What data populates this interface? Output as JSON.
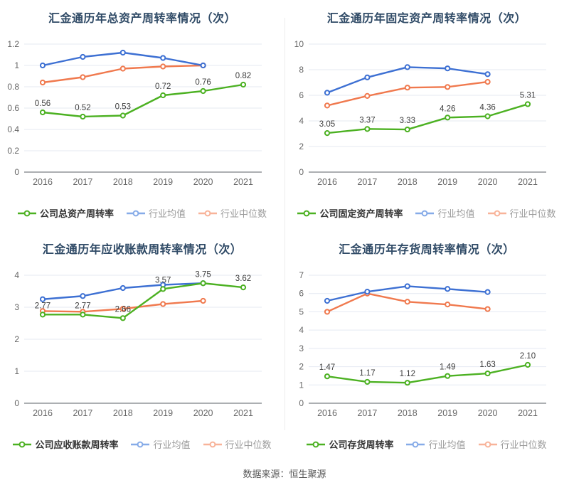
{
  "footer": {
    "text": "数据来源：恒生聚源"
  },
  "colors": {
    "company": "#4cb122",
    "mean": "#3d70d3",
    "median": "#f0794e",
    "mean_legend": "#86abe8",
    "median_legend": "#f8b399",
    "title": "#2f4a66",
    "tick": "#666666",
    "point_label": "#3d3d3d",
    "grid": "#e4e9f2",
    "axis": "#5a5f66"
  },
  "chart_data": [
    {
      "type": "line",
      "title": "汇金通历年总资产周转率情况（次）",
      "x_categories": [
        "2016",
        "2017",
        "2018",
        "2019",
        "2020",
        "2021"
      ],
      "ylim": [
        0,
        1.2
      ],
      "yticks": [
        0,
        0.2,
        0.4,
        0.6,
        0.8,
        1,
        1.2
      ],
      "legend_position": "bottom",
      "grid": true,
      "series": [
        {
          "name": "公司总资产周转率",
          "role": "company",
          "values": [
            0.56,
            0.52,
            0.53,
            0.72,
            0.76,
            0.82
          ],
          "point_labels": [
            "0.56",
            "0.52",
            "0.53",
            "0.72",
            "0.76",
            "0.82"
          ]
        },
        {
          "name": "行业均值",
          "role": "mean",
          "values": [
            1.0,
            1.08,
            1.12,
            1.07,
            1.0
          ]
        },
        {
          "name": "行业中位数",
          "role": "median",
          "values": [
            0.84,
            0.89,
            0.97,
            0.99,
            1.0
          ]
        }
      ]
    },
    {
      "type": "line",
      "title": "汇金通历年固定资产周转率情况（次）",
      "x_categories": [
        "2016",
        "2017",
        "2018",
        "2019",
        "2020",
        "2021"
      ],
      "ylim": [
        0,
        10
      ],
      "yticks": [
        0,
        2,
        4,
        6,
        8,
        10
      ],
      "legend_position": "bottom",
      "grid": true,
      "series": [
        {
          "name": "公司固定资产周转率",
          "role": "company",
          "values": [
            3.05,
            3.37,
            3.33,
            4.26,
            4.36,
            5.31
          ],
          "point_labels": [
            "3.05",
            "3.37",
            "3.33",
            "4.26",
            "4.36",
            "5.31"
          ]
        },
        {
          "name": "行业均值",
          "role": "mean",
          "values": [
            6.2,
            7.4,
            8.2,
            8.1,
            7.65
          ]
        },
        {
          "name": "行业中位数",
          "role": "median",
          "values": [
            5.2,
            5.95,
            6.6,
            6.65,
            7.05
          ]
        }
      ]
    },
    {
      "type": "line",
      "title": "汇金通历年应收账款周转率情况（次）",
      "x_categories": [
        "2016",
        "2017",
        "2018",
        "2019",
        "2020",
        "2021"
      ],
      "ylim": [
        0,
        4
      ],
      "yticks": [
        0,
        1,
        2,
        3,
        4
      ],
      "legend_position": "bottom",
      "grid": true,
      "series": [
        {
          "name": "公司应收账款周转率",
          "role": "company",
          "values": [
            2.77,
            2.77,
            2.66,
            3.57,
            3.75,
            3.62
          ],
          "point_labels": [
            "2.77",
            "2.77",
            "2.66",
            "3.57",
            "3.75",
            "3.62"
          ]
        },
        {
          "name": "行业均值",
          "role": "mean",
          "values": [
            3.25,
            3.35,
            3.6,
            3.7,
            3.75
          ]
        },
        {
          "name": "行业中位数",
          "role": "median",
          "values": [
            2.88,
            2.86,
            2.95,
            3.1,
            3.2
          ]
        }
      ]
    },
    {
      "type": "line",
      "title": "汇金通历年存货周转率情况（次）",
      "x_categories": [
        "2016",
        "2017",
        "2018",
        "2019",
        "2020",
        "2021"
      ],
      "ylim": [
        0,
        7
      ],
      "yticks": [
        0,
        1,
        2,
        3,
        4,
        5,
        6,
        7
      ],
      "legend_position": "bottom",
      "grid": true,
      "series": [
        {
          "name": "公司存货周转率",
          "role": "company",
          "values": [
            1.47,
            1.17,
            1.12,
            1.49,
            1.63,
            2.1
          ],
          "point_labels": [
            "1.47",
            "1.17",
            "1.12",
            "1.49",
            "1.63",
            "2.10"
          ]
        },
        {
          "name": "行业均值",
          "role": "mean",
          "values": [
            5.6,
            6.1,
            6.4,
            6.25,
            6.08
          ]
        },
        {
          "name": "行业中位数",
          "role": "median",
          "values": [
            5.0,
            6.0,
            5.55,
            5.4,
            5.15
          ]
        }
      ]
    }
  ]
}
